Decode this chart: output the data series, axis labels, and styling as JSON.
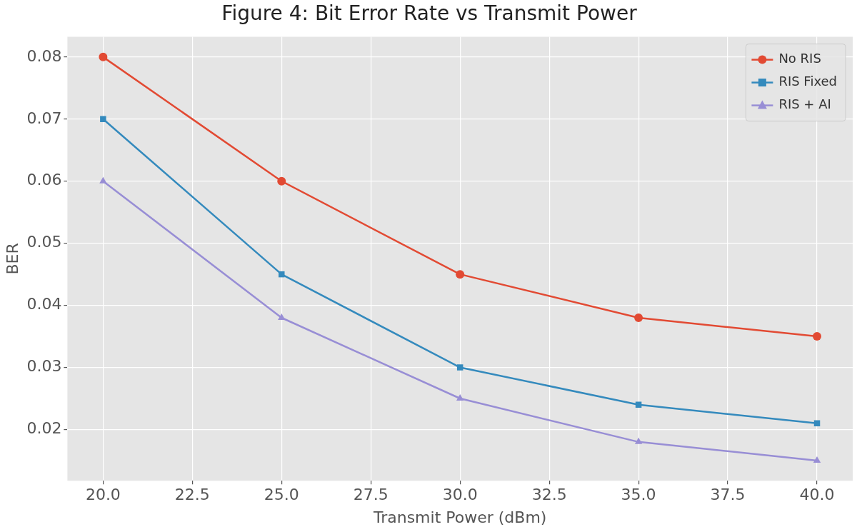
{
  "chart_data": {
    "type": "line",
    "title": "Figure 4: Bit Error Rate vs Transmit Power",
    "xlabel": "Transmit Power (dBm)",
    "ylabel": "BER",
    "x": [
      20,
      25,
      30,
      35,
      40
    ],
    "series": [
      {
        "name": "No RIS",
        "color": "#e24a33",
        "marker": "circle",
        "values": [
          0.08,
          0.06,
          0.045,
          0.038,
          0.035
        ]
      },
      {
        "name": "RIS Fixed",
        "color": "#348abd",
        "marker": "square",
        "values": [
          0.07,
          0.045,
          0.03,
          0.024,
          0.021
        ]
      },
      {
        "name": "RIS + AI",
        "color": "#988ed5",
        "marker": "triangle",
        "values": [
          0.06,
          0.038,
          0.025,
          0.018,
          0.015
        ]
      }
    ],
    "xlim": [
      19,
      41
    ],
    "xticks": [
      {
        "value": 20,
        "label": "20.0"
      },
      {
        "value": 22.5,
        "label": "22.5"
      },
      {
        "value": 25,
        "label": "25.0"
      },
      {
        "value": 27.5,
        "label": "27.5"
      },
      {
        "value": 30,
        "label": "30.0"
      },
      {
        "value": 32.5,
        "label": "32.5"
      },
      {
        "value": 35,
        "label": "35.0"
      },
      {
        "value": 37.5,
        "label": "37.5"
      },
      {
        "value": 40,
        "label": "40.0"
      }
    ],
    "ylim": [
      0.01175,
      0.08325
    ],
    "yticks": [
      {
        "value": 0.02,
        "label": "0.02"
      },
      {
        "value": 0.03,
        "label": "0.03"
      },
      {
        "value": 0.04,
        "label": "0.04"
      },
      {
        "value": 0.05,
        "label": "0.05"
      },
      {
        "value": 0.06,
        "label": "0.06"
      },
      {
        "value": 0.07,
        "label": "0.07"
      },
      {
        "value": 0.08,
        "label": "0.08"
      }
    ],
    "grid": true,
    "legend": "top right",
    "line_style": "solid"
  }
}
